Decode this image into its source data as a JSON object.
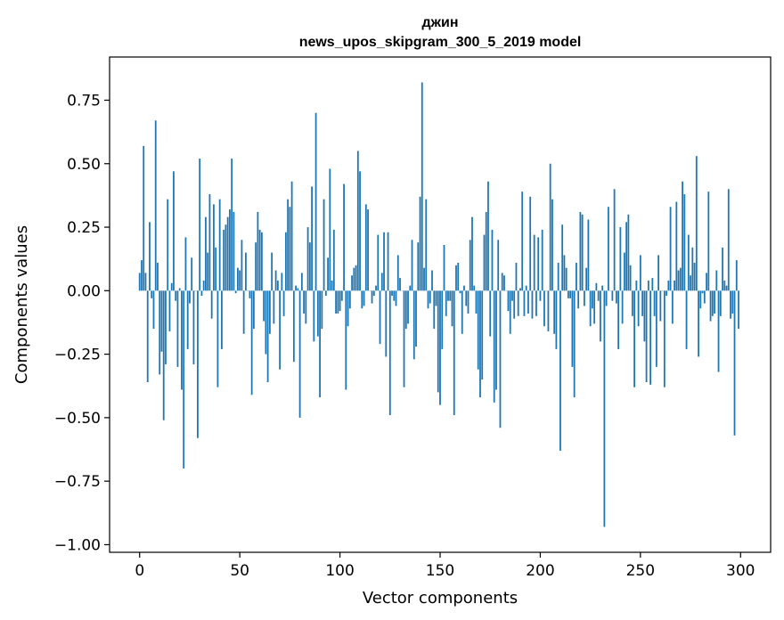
{
  "chart_data": {
    "type": "bar",
    "title_line1": "джин",
    "title_line2": "news_upos_skipgram_300_5_2019 model",
    "xlabel": "Vector components",
    "ylabel": "Components values",
    "xlim": [
      -15,
      315
    ],
    "ylim": [
      -1.03,
      0.92
    ],
    "xticks": [
      0,
      50,
      100,
      150,
      200,
      250,
      300
    ],
    "yticks": [
      -1.0,
      -0.75,
      -0.5,
      -0.25,
      0.0,
      0.25,
      0.5,
      0.75
    ],
    "ytick_labels": [
      "−1.00",
      "−0.75",
      "−0.50",
      "−0.25",
      "0.00",
      "0.25",
      "0.50",
      "0.75"
    ],
    "grid": false,
    "bar_color": "#1f77b4",
    "x": "indices 0..299",
    "values": [
      0.07,
      0.12,
      0.57,
      0.07,
      -0.36,
      0.27,
      -0.03,
      -0.15,
      0.67,
      0.11,
      -0.33,
      -0.24,
      -0.51,
      -0.29,
      0.36,
      -0.16,
      0.03,
      0.47,
      -0.04,
      -0.3,
      0.01,
      -0.39,
      -0.7,
      0.21,
      -0.23,
      -0.05,
      0.13,
      -0.29,
      0.0,
      -0.58,
      0.52,
      -0.02,
      0.04,
      0.29,
      0.15,
      0.38,
      -0.11,
      0.34,
      0.17,
      -0.38,
      0.36,
      -0.23,
      0.24,
      0.26,
      0.29,
      0.32,
      0.52,
      0.31,
      -0.01,
      0.09,
      0.08,
      0.2,
      -0.17,
      0.15,
      0.0,
      -0.03,
      -0.41,
      -0.15,
      0.19,
      0.31,
      0.24,
      0.23,
      -0.12,
      -0.25,
      -0.36,
      -0.17,
      0.15,
      -0.13,
      0.08,
      0.04,
      -0.31,
      0.07,
      -0.1,
      0.23,
      0.36,
      0.33,
      0.43,
      -0.28,
      0.02,
      0.01,
      -0.5,
      0.07,
      -0.09,
      -0.13,
      0.25,
      0.19,
      0.41,
      -0.2,
      0.7,
      -0.18,
      -0.42,
      -0.15,
      0.36,
      -0.02,
      0.13,
      0.48,
      0.04,
      0.24,
      -0.09,
      -0.09,
      -0.08,
      -0.04,
      0.42,
      -0.39,
      -0.14,
      -0.07,
      0.06,
      0.09,
      0.1,
      0.55,
      0.47,
      -0.07,
      -0.06,
      0.34,
      0.32,
      0.0,
      -0.05,
      -0.02,
      0.02,
      0.22,
      -0.21,
      0.07,
      0.23,
      -0.26,
      0.23,
      -0.49,
      -0.02,
      -0.04,
      -0.06,
      0.14,
      0.05,
      0.0,
      -0.38,
      -0.15,
      -0.13,
      0.02,
      0.2,
      -0.27,
      -0.22,
      0.19,
      0.37,
      0.82,
      0.09,
      0.36,
      -0.07,
      -0.05,
      0.08,
      -0.15,
      -0.06,
      -0.4,
      -0.45,
      -0.23,
      0.18,
      -0.1,
      -0.04,
      -0.04,
      -0.14,
      -0.49,
      0.1,
      0.11,
      -0.01,
      -0.17,
      0.02,
      -0.06,
      -0.09,
      0.2,
      0.29,
      0.02,
      -0.09,
      -0.31,
      -0.42,
      -0.35,
      0.22,
      0.31,
      0.43,
      -0.18,
      0.24,
      -0.44,
      -0.39,
      0.2,
      -0.54,
      0.07,
      0.06,
      0.0,
      -0.08,
      -0.17,
      -0.04,
      -0.11,
      0.11,
      -0.1,
      0.01,
      0.39,
      -0.1,
      0.02,
      -0.09,
      0.37,
      -0.11,
      0.22,
      -0.1,
      0.21,
      -0.04,
      0.24,
      -0.14,
      0.0,
      -0.16,
      0.5,
      0.36,
      -0.17,
      -0.23,
      0.11,
      -0.63,
      0.26,
      0.14,
      0.09,
      -0.03,
      -0.03,
      -0.3,
      -0.42,
      0.11,
      -0.07,
      0.31,
      0.3,
      -0.06,
      0.09,
      0.28,
      -0.14,
      -0.07,
      -0.13,
      0.03,
      -0.04,
      -0.2,
      0.02,
      -0.93,
      -0.06,
      0.33,
      0.0,
      -0.04,
      0.4,
      -0.05,
      -0.23,
      0.25,
      -0.13,
      0.15,
      0.27,
      0.3,
      0.1,
      -0.1,
      -0.38,
      0.04,
      -0.14,
      0.14,
      -0.1,
      -0.2,
      -0.36,
      0.04,
      -0.37,
      0.05,
      -0.1,
      -0.3,
      0.14,
      -0.12,
      0.0,
      -0.38,
      -0.02,
      0.04,
      0.33,
      -0.13,
      0.04,
      0.35,
      0.08,
      0.09,
      0.43,
      0.38,
      -0.23,
      0.22,
      0.06,
      0.17,
      0.11,
      0.53,
      -0.26,
      -0.07,
      -0.01,
      -0.05,
      0.07,
      0.39,
      -0.12,
      -0.1,
      -0.09,
      0.08,
      -0.32,
      -0.1,
      0.17,
      0.04,
      0.02,
      0.4,
      -0.11,
      -0.09,
      -0.57,
      0.12,
      -0.15
    ]
  }
}
